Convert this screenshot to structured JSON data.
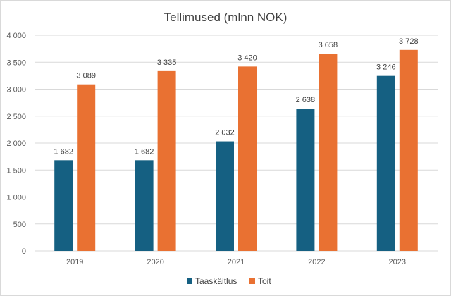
{
  "chart_data": {
    "type": "bar",
    "title": "Tellimused (mlnn NOK)",
    "categories": [
      "2019",
      "2020",
      "2021",
      "2022",
      "2023"
    ],
    "series": [
      {
        "name": "Taaskäitlus",
        "color": "#156082",
        "values": [
          1682,
          1682,
          2032,
          2638,
          3246
        ],
        "labels": [
          "1 682",
          "1 682",
          "2 032",
          "2 638",
          "3 246"
        ]
      },
      {
        "name": "Toit",
        "color": "#E97132",
        "values": [
          3089,
          3335,
          3420,
          3658,
          3728
        ],
        "labels": [
          "3 089",
          "3 335",
          "3 420",
          "3 658",
          "3 728"
        ]
      }
    ],
    "ylim": [
      0,
      4000
    ],
    "yticks": [
      0,
      500,
      1000,
      1500,
      2000,
      2500,
      3000,
      3500,
      4000
    ],
    "ytick_labels": [
      "0",
      "500",
      "1 000",
      "1 500",
      "2 000",
      "2 500",
      "3 000",
      "3 500",
      "4 000"
    ],
    "grid": true,
    "legend": "bottom",
    "gridColor": "#d9d9d9"
  }
}
